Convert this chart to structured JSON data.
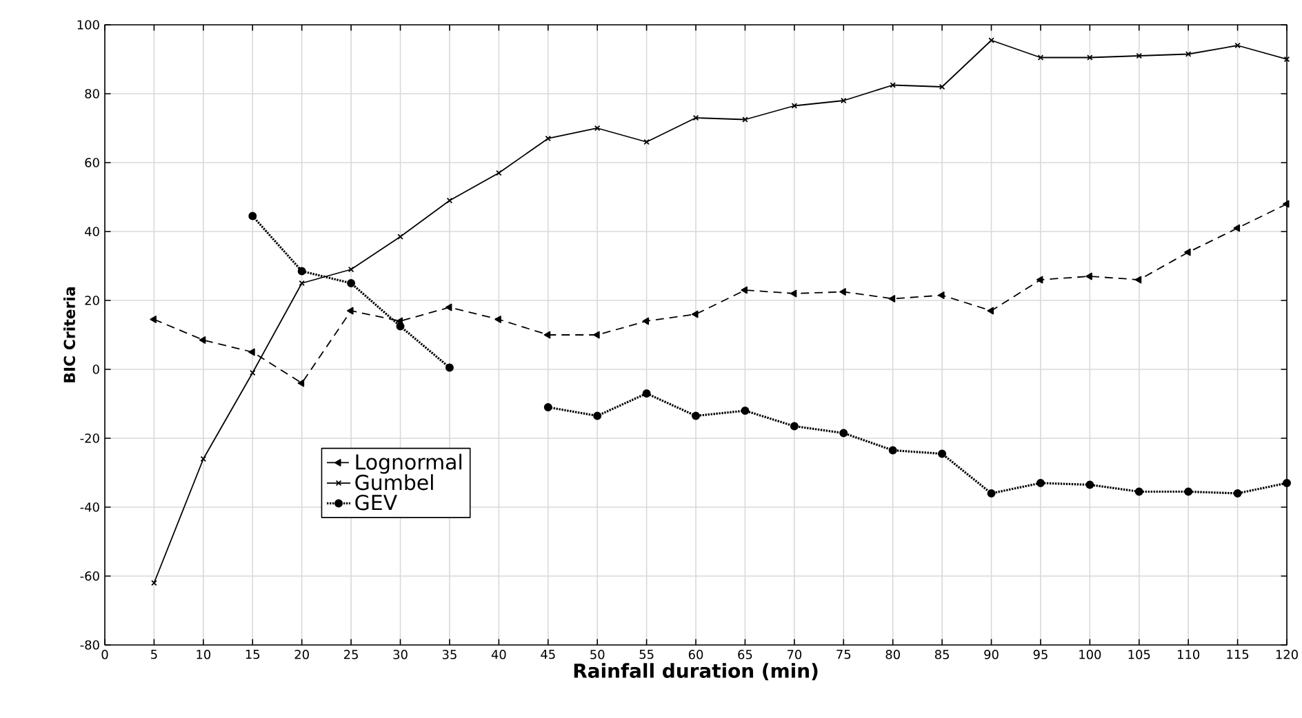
{
  "chart_data": {
    "type": "line",
    "xlabel": "Rainfall duration (min)",
    "ylabel": "BIC Criteria",
    "xlim": [
      0,
      120
    ],
    "xticks": [
      0,
      5,
      10,
      15,
      20,
      25,
      30,
      35,
      40,
      45,
      50,
      55,
      60,
      65,
      70,
      75,
      80,
      85,
      90,
      95,
      100,
      105,
      110,
      115,
      120
    ],
    "ylim": [
      -80,
      100
    ],
    "yticks": [
      -80,
      -60,
      -40,
      -20,
      0,
      20,
      40,
      60,
      80,
      100
    ],
    "grid": true,
    "legend": "bottom left",
    "series": [
      {
        "name": "Lognormal",
        "color": "#000000",
        "marker": "triangle",
        "line_style": "dashed",
        "x": [
          5,
          10,
          15,
          20,
          25,
          30,
          35,
          40,
          45,
          50,
          55,
          60,
          65,
          70,
          75,
          80,
          85,
          90,
          95,
          100,
          105,
          110,
          115,
          120
        ],
        "values": [
          14.5,
          8.5,
          5,
          -4,
          17,
          14,
          18,
          14.5,
          10,
          10,
          14,
          16,
          23,
          22,
          22.5,
          20.5,
          21.5,
          17,
          26,
          27,
          26,
          34,
          41,
          48
        ]
      },
      {
        "name": "Gumbel",
        "color": "#000000",
        "marker": "cross",
        "line_style": "solid",
        "x": [
          5,
          10,
          15,
          20,
          25,
          30,
          35,
          40,
          45,
          50,
          55,
          60,
          65,
          70,
          75,
          80,
          85,
          90,
          95,
          100,
          105,
          110,
          115,
          120
        ],
        "values": [
          -62,
          -26,
          -1,
          25,
          29,
          38.5,
          49,
          57,
          67,
          70,
          66,
          73,
          72.5,
          76.5,
          78,
          82.5,
          82,
          95.5,
          90.5,
          90.5,
          91,
          91.5,
          94,
          90
        ]
      },
      {
        "name": "GEV",
        "color": "#000000",
        "marker": "circle",
        "line_style": "dotted",
        "x": [
          15,
          20,
          25,
          30,
          35,
          40,
          45,
          50,
          55,
          60,
          65,
          70,
          75,
          80,
          85,
          90,
          95,
          100,
          105,
          110,
          115,
          120
        ],
        "values": [
          44.5,
          28.5,
          25,
          12.5,
          0.5,
          null,
          -11,
          -13.5,
          -7,
          -13.5,
          -12,
          -16.5,
          -18.5,
          -23.5,
          -24.5,
          -36,
          -33,
          -33.5,
          -35.5,
          -35.5,
          -36,
          -33
        ]
      }
    ]
  }
}
